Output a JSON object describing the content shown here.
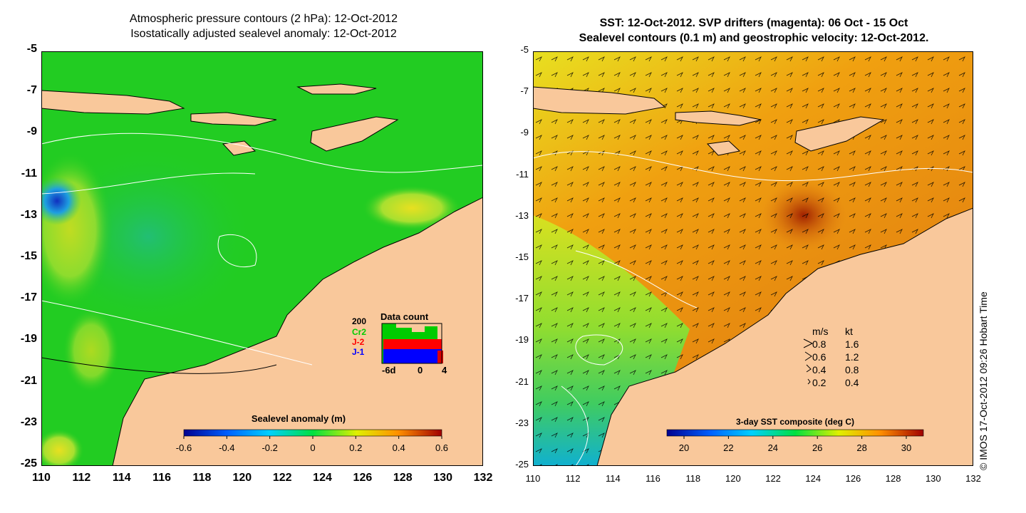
{
  "left_panel": {
    "title_line1": "Atmospheric pressure contours (2 hPa): 12-Oct-2012",
    "title_line2": "Isostatically adjusted sealevel anomaly: 12-Oct-2012",
    "colorbar": {
      "title": "Sealevel anomaly (m)",
      "ticks": [
        "-0.6",
        "-0.4",
        "-0.2",
        "0",
        "0.2",
        "0.4",
        "0.6"
      ]
    },
    "inset": {
      "title": "Data count",
      "ymax_label": "200",
      "series": [
        {
          "name": "Cr2",
          "color": "#00cc00"
        },
        {
          "name": "J-2",
          "color": "#ff0000"
        },
        {
          "name": "J-1",
          "color": "#0000ff"
        }
      ],
      "x_ticks": [
        "-6d",
        "0",
        "4"
      ]
    }
  },
  "right_panel": {
    "title_line1": "SST: 12-Oct-2012. SVP drifters (magenta): 06 Oct - 15 Oct",
    "title_line2": "Sealevel contours (0.1 m) and geostrophic velocity: 12-Oct-2012.",
    "colorbar": {
      "title": "3-day SST composite (deg C)",
      "ticks": [
        "20",
        "22",
        "24",
        "26",
        "28",
        "30"
      ]
    },
    "velocity_legend": {
      "header_ms": "m/s",
      "header_kt": "kt",
      "rows": [
        {
          "ms": "0.8",
          "kt": "1.6"
        },
        {
          "ms": "0.6",
          "kt": "1.2"
        },
        {
          "ms": "0.4",
          "kt": "0.8"
        },
        {
          "ms": "0.2",
          "kt": "0.4"
        }
      ]
    }
  },
  "axes": {
    "lat_ticks": [
      "-5",
      "-7",
      "-9",
      "-11",
      "-13",
      "-15",
      "-17",
      "-19",
      "-21",
      "-23",
      "-25"
    ],
    "lon_ticks": [
      "110",
      "112",
      "114",
      "116",
      "118",
      "120",
      "122",
      "124",
      "126",
      "128",
      "130",
      "132"
    ]
  },
  "credit": "© IMOS 17-Oct-2012 09:26 Hobart Time",
  "colors": {
    "land": "#f9c89b",
    "ocean_sla": "#22cc22",
    "ocean_sst": "#e07a10"
  }
}
